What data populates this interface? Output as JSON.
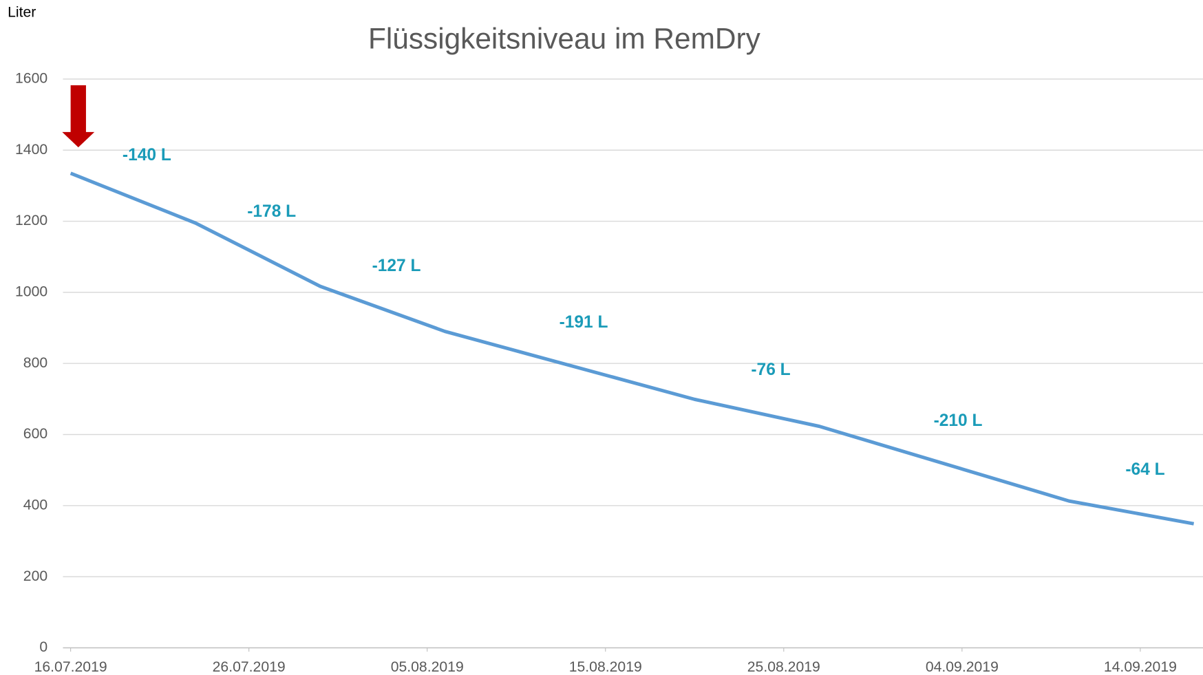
{
  "chart_data": {
    "type": "line",
    "title": "Flüssigkeitsniveau im RemDry",
    "y_label": "Liter",
    "x": [
      "2019-07-16",
      "2019-07-23",
      "2019-07-30",
      "2019-08-06",
      "2019-08-20",
      "2019-08-27",
      "2019-09-10",
      "2019-09-17"
    ],
    "series": [
      {
        "name": "Liter",
        "color": "#5b9bd5",
        "values": [
          1335,
          1195,
          1017,
          890,
          699,
          623,
          413,
          349
        ]
      }
    ],
    "annotations": [
      "-140 L",
      "-178 L",
      "-127 L",
      "-191 L",
      "-76 L",
      "-210 L",
      "-64 L"
    ],
    "annotation_color": "#1a9bb8",
    "xlim": [
      "2019-07-16",
      "2019-09-17"
    ],
    "xticks": [
      {
        "value": "2019-07-16",
        "label": "16.07.2019"
      },
      {
        "value": "2019-07-26",
        "label": "26.07.2019"
      },
      {
        "value": "2019-08-05",
        "label": "05.08.2019"
      },
      {
        "value": "2019-08-15",
        "label": "15.08.2019"
      },
      {
        "value": "2019-08-25",
        "label": "25.08.2019"
      },
      {
        "value": "2019-09-04",
        "label": "04.09.2019"
      },
      {
        "value": "2019-09-14",
        "label": "14.09.2019"
      }
    ],
    "ylim": [
      0,
      1600
    ],
    "yticks": [
      0,
      200,
      400,
      600,
      800,
      1000,
      1200,
      1400,
      1600
    ],
    "grid": true
  }
}
